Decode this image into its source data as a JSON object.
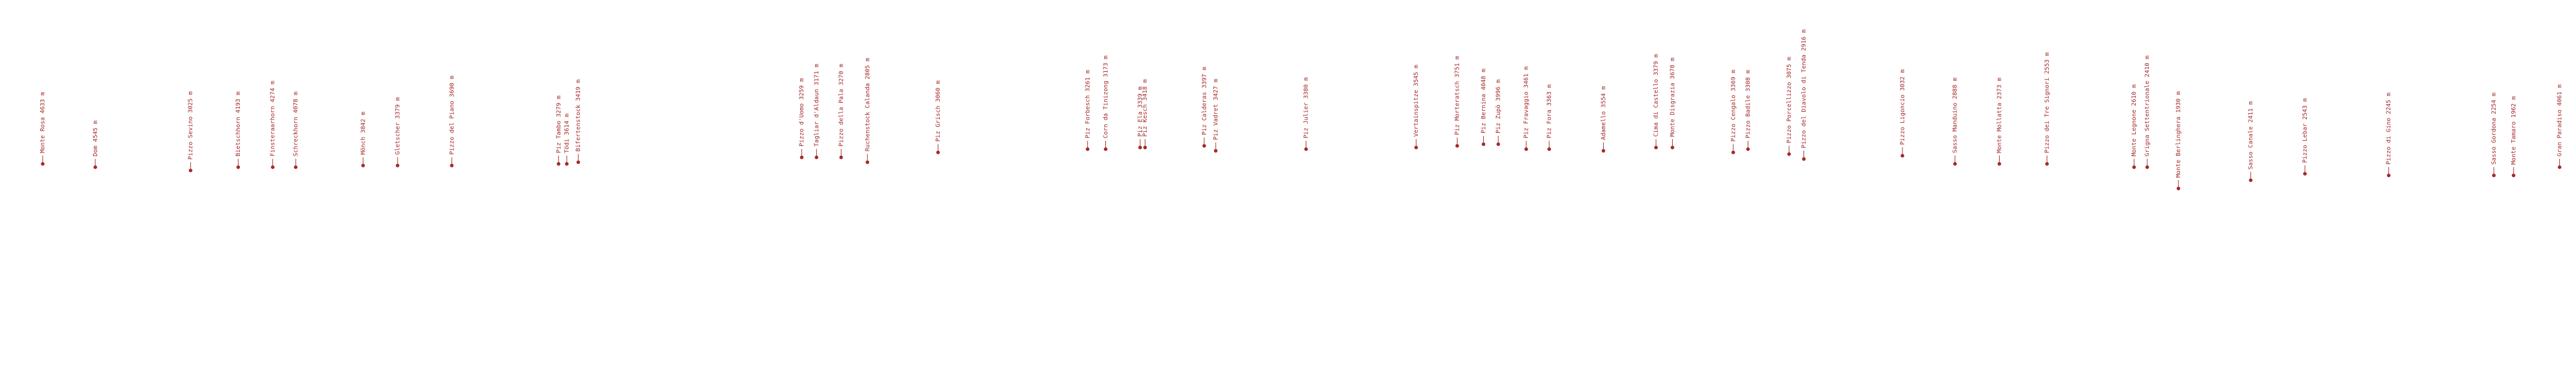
{
  "peaks": [
    {
      "label": "Monte Rosa 4633 m"
    },
    {
      "label": "Dom 4545 m"
    },
    {
      "label": "Pizzo Sevino 3025 m"
    },
    {
      "label": "Bietschhorn 4193 m"
    },
    {
      "label": "Finsteraarhorn 4274 m"
    },
    {
      "label": "Schreckhorn 4078 m"
    },
    {
      "label": "Mönch 3842 m"
    },
    {
      "label": "Gletscher 3379 m"
    },
    {
      "label": "Pizzo del Piano 3690 m"
    },
    {
      "label": "Piz Tambo 3279 m"
    },
    {
      "label": "Tödi 3614 m"
    },
    {
      "label": "Bifertenstock 3419 m"
    },
    {
      "label": "Pizzo d'Uomo 3259 m"
    },
    {
      "label": "Tagliar d'Aldaun 3171 m"
    },
    {
      "label": "Pizzo della Pala 3270 m"
    },
    {
      "label": "Ruchenstock Calanda 2805 m"
    },
    {
      "label": "Piz Grisch 3060 m"
    },
    {
      "label": "Piz Forbesch 3261 m"
    },
    {
      "label": "Corn da Tinizong 3173 m"
    },
    {
      "label": "Piz Ela 3339 m"
    },
    {
      "label": "Piz Kesch 3418 m"
    },
    {
      "label": "Piz Calderas 3397 m"
    },
    {
      "label": "Piz Vadret 3427 m"
    },
    {
      "label": "Piz Julier 3380 m"
    },
    {
      "label": "Vertainspitze 3545 m"
    },
    {
      "label": "Piz Morteratsch 3751 m"
    },
    {
      "label": "Piz Bernina 4048 m"
    },
    {
      "label": "Piz Zupò 3996 m"
    },
    {
      "label": "Piz Fravaggio 3461 m"
    },
    {
      "label": "Piz Fora 3363 m"
    },
    {
      "label": "Adamello 3554 m"
    },
    {
      "label": "Cima di Castello 3379 m"
    },
    {
      "label": "Monte Disgrazia 3678 m"
    },
    {
      "label": "Pizzo Cengalo 3369 m"
    },
    {
      "label": "Pizzo Badile 3308 m"
    },
    {
      "label": "Pizzo Porcellizzo 3075 m"
    },
    {
      "label": "Pizzo del Diavolo di Tenda 2916 m"
    },
    {
      "label": "Pizzo Ligoncio 3032 m"
    },
    {
      "label": "Sasso Manduino 2888 m"
    },
    {
      "label": "Monte Mollatta 2373 m"
    },
    {
      "label": "Pizzo dei Tre Signori 2553 m"
    },
    {
      "label": "Monte Legnone 2610 m"
    },
    {
      "label": "Grigna Settentrionale 2410 m"
    },
    {
      "label": "Monte Berlinghera 1930 m"
    },
    {
      "label": "Sasso Canale 2411 m"
    },
    {
      "label": "Pizzo Lebar 2543 m"
    },
    {
      "label": "Pizzo di Gino 2245 m"
    },
    {
      "label": "Sasso Gordona 2254 m"
    },
    {
      "label": "Monte Tamaro 1962 m"
    },
    {
      "label": "Gran Paradiso 4061 m"
    }
  ]
}
